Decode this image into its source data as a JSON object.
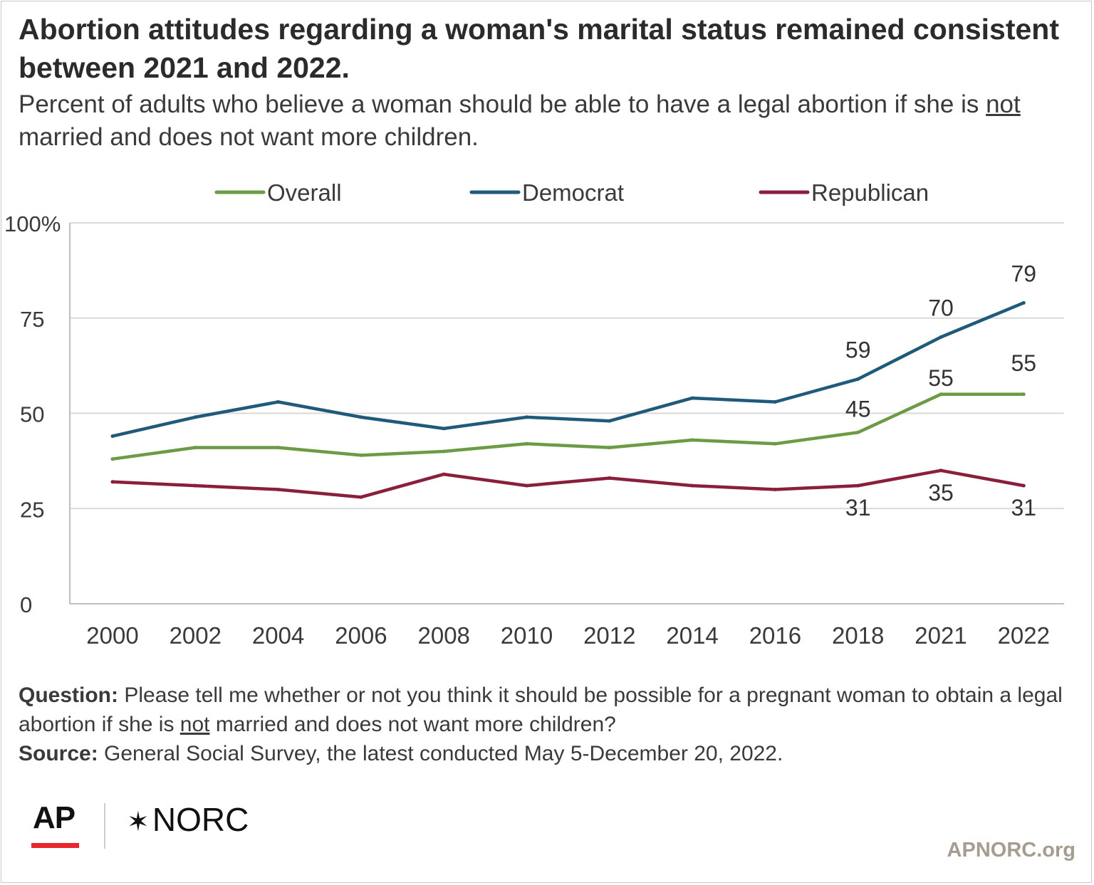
{
  "header": {
    "title": "Abortion attitudes regarding a woman's marital status remained consistent between 2021 and 2022.",
    "subtitle_before": "Percent of adults who believe a woman should be able to have a legal abortion if she is ",
    "subtitle_emph": "not",
    "subtitle_after": " married and does not want more children."
  },
  "chart_data": {
    "type": "line",
    "title": "",
    "xlabel": "",
    "ylabel": "",
    "ylim": [
      0,
      100
    ],
    "y_ticks": [
      "0",
      "25",
      "50",
      "75",
      "100%"
    ],
    "y_tick_values": [
      0,
      25,
      50,
      75,
      100
    ],
    "grid": true,
    "legend_position": "top",
    "categories": [
      "2000",
      "2002",
      "2004",
      "2006",
      "2008",
      "2010",
      "2012",
      "2014",
      "2016",
      "2018",
      "2021",
      "2022"
    ],
    "series": [
      {
        "name": "Overall",
        "color": "#6d9a45",
        "values": [
          38,
          41,
          41,
          39,
          40,
          42,
          41,
          43,
          42,
          45,
          55,
          55
        ],
        "labels": [
          {
            "index": 9,
            "text": "45",
            "position": "above"
          },
          {
            "index": 10,
            "text": "55",
            "position": "above"
          },
          {
            "index": 11,
            "text": "55",
            "position": "above-high"
          }
        ]
      },
      {
        "name": "Democrat",
        "color": "#1f5a7a",
        "values": [
          44,
          49,
          53,
          49,
          46,
          49,
          48,
          54,
          53,
          59,
          70,
          79
        ],
        "labels": [
          {
            "index": 9,
            "text": "59",
            "position": "above"
          },
          {
            "index": 10,
            "text": "70",
            "position": "above"
          },
          {
            "index": 11,
            "text": "79",
            "position": "above"
          }
        ]
      },
      {
        "name": "Republican",
        "color": "#8a1f3c",
        "values": [
          32,
          31,
          30,
          28,
          34,
          31,
          33,
          31,
          30,
          31,
          35,
          31
        ],
        "labels": [
          {
            "index": 9,
            "text": "31",
            "position": "below"
          },
          {
            "index": 10,
            "text": "35",
            "position": "below"
          },
          {
            "index": 11,
            "text": "31",
            "position": "below"
          }
        ]
      }
    ]
  },
  "footer": {
    "question_label": "Question:",
    "question_before": " Please tell me whether or not you think it should be possible for a pregnant woman to obtain a legal abortion if she is ",
    "question_emph": "not",
    "question_after": " married and does not want more children?",
    "source_label": "Source:",
    "source_text": " General Social Survey, the latest conducted May 5-December 20, 2022."
  },
  "branding": {
    "ap_logo": "AP",
    "norc_star": "✶",
    "norc_logo": "NORC",
    "site": "APNORC.org"
  }
}
